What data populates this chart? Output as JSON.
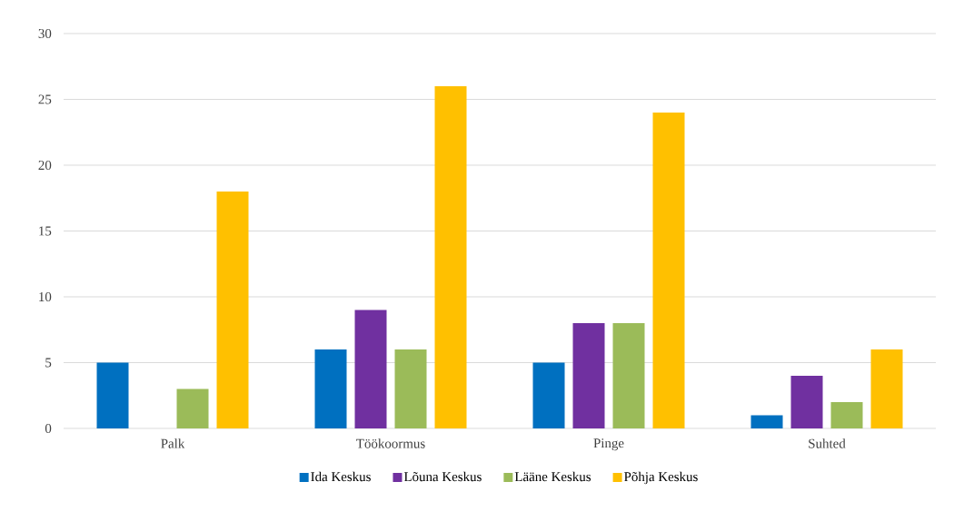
{
  "chart_data": {
    "type": "bar",
    "categories": [
      "Palk",
      "Töökoormus",
      "Pinge",
      "Suhted"
    ],
    "series": [
      {
        "name": "Ida Keskus",
        "color": "#0070c0",
        "values": [
          5,
          6,
          5,
          1
        ]
      },
      {
        "name": "Lõuna Keskus",
        "color": "#7030a0",
        "values": [
          0,
          9,
          8,
          4
        ]
      },
      {
        "name": "Lääne Keskus",
        "color": "#9bbb59",
        "values": [
          3,
          6,
          8,
          2
        ]
      },
      {
        "name": "Põhja Keskus",
        "color": "#ffc000",
        "values": [
          18,
          26,
          24,
          6
        ]
      }
    ],
    "ylim": [
      0,
      30
    ],
    "yticks": [
      0,
      5,
      10,
      15,
      20,
      25,
      30
    ],
    "grid": "y",
    "legend": "bottom"
  }
}
